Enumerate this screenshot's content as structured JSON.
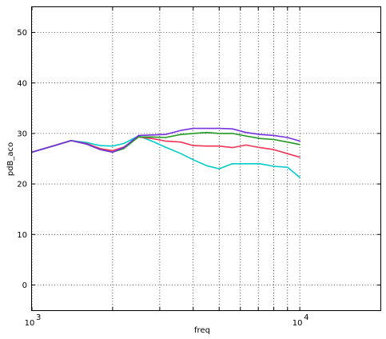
{
  "chart_data": {
    "type": "line",
    "title": "",
    "xlabel": "freq",
    "ylabel": "pdB_aco",
    "xscale": "log",
    "xlim": [
      1000,
      20000
    ],
    "ylim": [
      -5,
      55
    ],
    "yticks": [
      0,
      10,
      20,
      30,
      40,
      50
    ],
    "xticks_labeled": [
      {
        "value": 1000,
        "base": "10",
        "exp": "3"
      },
      {
        "value": 10000,
        "base": "10",
        "exp": "4"
      }
    ],
    "xminor": [
      2000,
      3000,
      4000,
      5000,
      6000,
      7000,
      8000,
      9000
    ],
    "grid": true,
    "legend": "none",
    "series": [
      {
        "color": "#00cccc",
        "x": [
          1000,
          1250,
          1400,
          1600,
          1800,
          2000,
          2200,
          2500,
          2800,
          3150,
          3600,
          4000,
          4500,
          5000,
          5600,
          6300,
          7100,
          8000,
          9000,
          10000
        ],
        "y": [
          26.3,
          27.8,
          28.6,
          28.2,
          27.6,
          27.5,
          28.0,
          29.5,
          28.5,
          27.3,
          26.0,
          24.8,
          23.6,
          23.0,
          24.0,
          24.0,
          24.0,
          23.5,
          23.3,
          21.3
        ]
      },
      {
        "color": "#ee3355",
        "x": [
          1000,
          1250,
          1400,
          1600,
          1800,
          2000,
          2200,
          2500,
          2800,
          3150,
          3600,
          4000,
          4500,
          5000,
          5600,
          6300,
          7100,
          8000,
          9000,
          10000
        ],
        "y": [
          26.3,
          27.8,
          28.6,
          28.0,
          27.0,
          26.6,
          27.3,
          29.3,
          29.0,
          28.5,
          28.3,
          27.6,
          27.5,
          27.5,
          27.2,
          27.7,
          27.2,
          26.8,
          26.0,
          25.3
        ]
      },
      {
        "color": "#229922",
        "x": [
          1000,
          1250,
          1400,
          1600,
          1800,
          2000,
          2200,
          2500,
          2800,
          3150,
          3600,
          4000,
          4500,
          5000,
          5600,
          6300,
          7100,
          8000,
          9000,
          10000
        ],
        "y": [
          26.3,
          27.8,
          28.6,
          27.9,
          26.8,
          26.3,
          27.0,
          29.3,
          29.3,
          29.2,
          29.8,
          30.0,
          30.2,
          30.0,
          30.0,
          29.5,
          29.0,
          28.8,
          28.3,
          27.8
        ]
      },
      {
        "color": "#7733dd",
        "x": [
          1000,
          1250,
          1400,
          1600,
          1800,
          2000,
          2200,
          2500,
          2800,
          3150,
          3600,
          4000,
          4500,
          5000,
          5600,
          6300,
          7100,
          8000,
          9000,
          10000
        ],
        "y": [
          26.3,
          27.8,
          28.6,
          27.9,
          26.8,
          26.3,
          27.2,
          29.6,
          29.7,
          29.8,
          30.6,
          31.0,
          31.0,
          31.0,
          30.9,
          30.2,
          29.8,
          29.6,
          29.2,
          28.5
        ]
      }
    ]
  }
}
